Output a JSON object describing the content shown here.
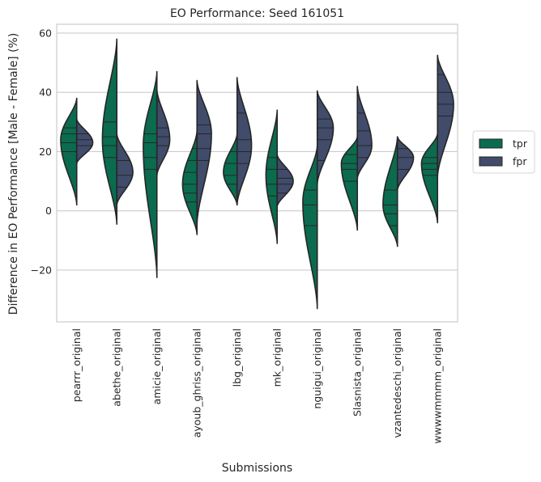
{
  "chart_data": {
    "type": "violin",
    "title": "EO Performance: Seed 161051",
    "xlabel": "Submissions",
    "ylabel": "Difference in EO Performance [Male - Female] (%)",
    "ylim": [
      -37.5,
      63
    ],
    "yticks": [
      -20,
      0,
      20,
      40,
      60
    ],
    "ytick_labels": [
      "−20",
      "0",
      "20",
      "40",
      "60"
    ],
    "grid": true,
    "split": true,
    "inner": "quartile-lines",
    "legend_position": "right",
    "categories": [
      "pearrr_original",
      "abethe_original",
      "amicie_original",
      "ayoub_ghriss_original",
      "lbg_original",
      "mk_original",
      "nguigui_original",
      "Slasnista_original",
      "vzantedeschi_original",
      "wwwwmmmm_original"
    ],
    "series": [
      {
        "name": "tpr",
        "color": "#0b6b4e",
        "violins": [
          {
            "min": 2,
            "max": 38,
            "peak": 24,
            "spread": 1.0,
            "lines": [
              23,
              26,
              28,
              20
            ]
          },
          {
            "min": -4.5,
            "max": 58,
            "peak": 24,
            "spread": 0.9,
            "lines": [
              18,
              22,
              25,
              30
            ]
          },
          {
            "min": -22.5,
            "max": 47,
            "peak": 22,
            "spread": 0.85,
            "lines": [
              14,
              18,
              23,
              26
            ]
          },
          {
            "min": -8,
            "max": 27,
            "peak": 9,
            "spread": 0.9,
            "lines": [
              3,
              6,
              9,
              13,
              17,
              21
            ]
          },
          {
            "min": 2,
            "max": 26,
            "peak": 13,
            "spread": 0.85,
            "lines": [
              9,
              12,
              16,
              20
            ]
          },
          {
            "min": -11,
            "max": 34,
            "peak": 12,
            "spread": 0.7,
            "lines": [
              5,
              9,
              14,
              18
            ]
          },
          {
            "min": -33,
            "max": 22,
            "peak": 3,
            "spread": 0.9,
            "lines": [
              -5,
              2,
              7
            ]
          },
          {
            "min": -6.5,
            "max": 25,
            "peak": 16,
            "spread": 1.0,
            "lines": [
              10,
              14,
              16,
              19
            ]
          },
          {
            "min": -12,
            "max": 25,
            "peak": 2,
            "spread": 0.9,
            "lines": [
              -5,
              -1,
              2,
              7
            ]
          },
          {
            "min": -4,
            "max": 26,
            "peak": 16,
            "spread": 1.0,
            "lines": [
              12,
              14,
              16,
              18
            ]
          }
        ]
      },
      {
        "name": "fpr",
        "color": "#414c6b",
        "violins": [
          {
            "min": 16,
            "max": 31,
            "peak": 23,
            "spread": 1.0,
            "lines": [
              22,
              24,
              26
            ]
          },
          {
            "min": 2,
            "max": 26,
            "peak": 13,
            "spread": 1.0,
            "lines": [
              8,
              12,
              17
            ]
          },
          {
            "min": 12,
            "max": 41,
            "peak": 24,
            "spread": 0.8,
            "lines": [
              22,
              25,
              28,
              37
            ]
          },
          {
            "min": -4.5,
            "max": 44,
            "peak": 26,
            "spread": 0.9,
            "lines": [
              17,
              21,
              26,
              29
            ]
          },
          {
            "min": 2,
            "max": 45,
            "peak": 22,
            "spread": 0.9,
            "lines": [
              16,
              20,
              24,
              33
            ]
          },
          {
            "min": 1.5,
            "max": 19,
            "peak": 10,
            "spread": 1.0,
            "lines": [
              6,
              9,
              11,
              14
            ]
          },
          {
            "min": 9,
            "max": 40.5,
            "peak": 28,
            "spread": 1.0,
            "lines": [
              17,
              24,
              28,
              31
            ]
          },
          {
            "min": 11,
            "max": 42,
            "peak": 22,
            "spread": 0.9,
            "lines": [
              18,
              22,
              27,
              33
            ]
          },
          {
            "min": 7,
            "max": 25,
            "peak": 18,
            "spread": 1.0,
            "lines": [
              14,
              18,
              21
            ]
          },
          {
            "min": 11.5,
            "max": 52.5,
            "peak": 36,
            "spread": 1.0,
            "lines": [
              32,
              36,
              40,
              46
            ]
          }
        ]
      }
    ]
  }
}
